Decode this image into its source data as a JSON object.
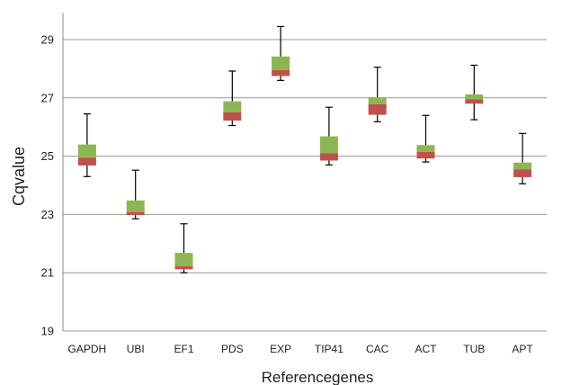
{
  "chart_data": {
    "type": "boxplot",
    "title": "",
    "xlabel": "Referencegenes",
    "ylabel": "Cqvalue",
    "ylim": [
      19,
      30.2
    ],
    "yticks": [
      "19",
      "21",
      "23",
      "25",
      "27",
      "29"
    ],
    "grid": true,
    "legend": "none",
    "colors": {
      "upper_box": "#8db653",
      "lower_box": "#c0504d",
      "whisker": "#000000",
      "grid": "#999999"
    },
    "categories": [
      {
        "name": "GAPDH",
        "min": 24.3,
        "q1": 24.68,
        "median": 24.95,
        "q3": 25.4,
        "max": 26.45
      },
      {
        "name": "UBI",
        "min": 22.85,
        "q1": 22.98,
        "median": 23.08,
        "q3": 23.48,
        "max": 24.52
      },
      {
        "name": "EF1",
        "min": 21.0,
        "q1": 21.12,
        "median": 21.22,
        "q3": 21.68,
        "max": 22.68
      },
      {
        "name": "PDS",
        "min": 26.05,
        "q1": 26.22,
        "median": 26.5,
        "q3": 26.88,
        "max": 27.92
      },
      {
        "name": "EXP",
        "min": 27.6,
        "q1": 27.75,
        "median": 27.95,
        "q3": 28.42,
        "max": 29.45
      },
      {
        "name": "TIP41",
        "min": 24.7,
        "q1": 24.85,
        "median": 25.1,
        "q3": 25.68,
        "max": 26.68
      },
      {
        "name": "CAC",
        "min": 26.18,
        "q1": 26.42,
        "median": 26.78,
        "q3": 27.02,
        "max": 28.05
      },
      {
        "name": "ACT",
        "min": 24.8,
        "q1": 24.92,
        "median": 25.15,
        "q3": 25.38,
        "max": 26.4
      },
      {
        "name": "TUB",
        "min": 26.25,
        "q1": 26.8,
        "median": 26.95,
        "q3": 27.12,
        "max": 28.12
      },
      {
        "name": "APT",
        "min": 24.05,
        "q1": 24.28,
        "median": 24.55,
        "q3": 24.78,
        "max": 25.78
      }
    ]
  }
}
